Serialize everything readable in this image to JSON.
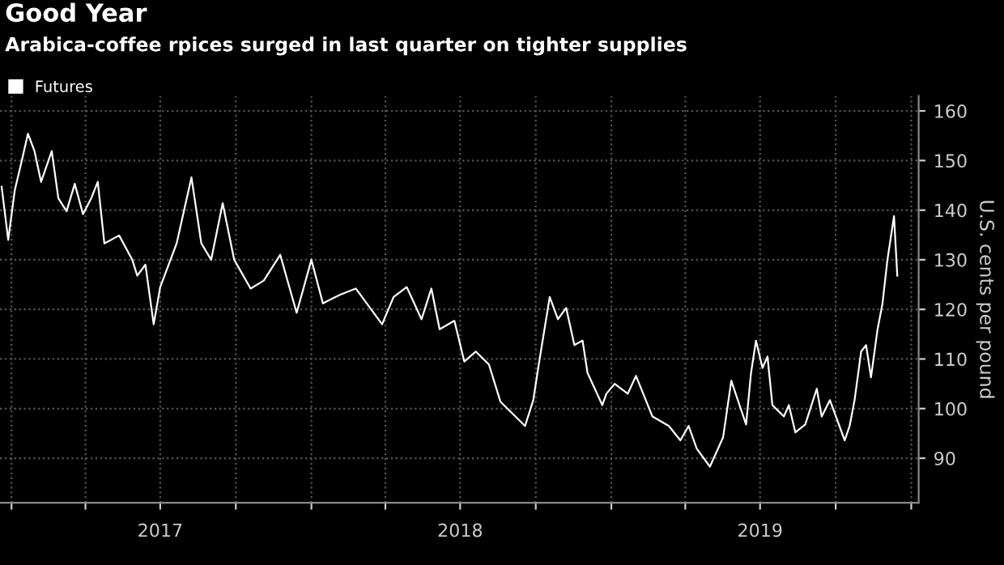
{
  "chart_data": {
    "type": "line",
    "title": "Good Year",
    "subtitle": "Arabica-coffee rpices surged in last quarter on tighter supplies",
    "ylabel": "U.S. cents per pound",
    "x": [
      "2016-12-20",
      "2016-12-28",
      "2017-01-05",
      "2017-01-13",
      "2017-01-21",
      "2017-01-29",
      "2017-02-06",
      "2017-02-19",
      "2017-02-27",
      "2017-03-09",
      "2017-03-19",
      "2017-03-29",
      "2017-04-08",
      "2017-04-16",
      "2017-04-24",
      "2017-05-12",
      "2017-05-28",
      "2017-06-03",
      "2017-06-13",
      "2017-06-23",
      "2017-07-01",
      "2017-07-21",
      "2017-08-08",
      "2017-08-20",
      "2017-09-01",
      "2017-09-15",
      "2017-09-29",
      "2017-10-19",
      "2017-11-04",
      "2017-11-24",
      "2017-12-14",
      "2018-01-01",
      "2018-01-15",
      "2018-02-04",
      "2018-02-24",
      "2018-03-28",
      "2018-04-11",
      "2018-04-27",
      "2018-05-15",
      "2018-05-27",
      "2018-06-06",
      "2018-06-24",
      "2018-07-06",
      "2018-07-20",
      "2018-08-05",
      "2018-08-19",
      "2018-09-18",
      "2018-09-28",
      "2018-10-04",
      "2018-10-18",
      "2018-10-28",
      "2018-11-07",
      "2018-11-17",
      "2018-11-27",
      "2018-12-03",
      "2018-12-21",
      "2018-12-26",
      "2019-01-05",
      "2019-01-21",
      "2019-01-31",
      "2019-02-20",
      "2019-03-12",
      "2019-03-26",
      "2019-04-05",
      "2019-04-15",
      "2019-05-01",
      "2019-05-17",
      "2019-05-27",
      "2019-06-06",
      "2019-06-14",
      "2019-06-20",
      "2019-06-26",
      "2019-07-04",
      "2019-07-10",
      "2019-07-16",
      "2019-07-30",
      "2019-08-05",
      "2019-08-13",
      "2019-08-25",
      "2019-09-08",
      "2019-09-14",
      "2019-09-24",
      "2019-10-12",
      "2019-10-18",
      "2019-10-24",
      "2019-11-01",
      "2019-11-07",
      "2019-11-13",
      "2019-11-21",
      "2019-11-27",
      "2019-12-03",
      "2019-12-11",
      "2019-12-15"
    ],
    "series": [
      {
        "name": "Futures",
        "color": "#ffffff",
        "values": [
          144.7,
          134,
          144,
          149.6,
          155.4,
          151.9,
          145.7,
          151.9,
          142.4,
          139.8,
          145.3,
          139.2,
          142.4,
          145.7,
          133.3,
          134.9,
          130,
          126.8,
          129,
          117,
          124.5,
          133.3,
          146.6,
          133.3,
          130,
          141.4,
          130,
          124.2,
          125.8,
          131,
          119.3,
          130,
          121.2,
          122.9,
          124.2,
          117,
          122.5,
          124.5,
          118,
          124.2,
          116,
          117.7,
          109.5,
          111.5,
          108.9,
          101.4,
          96.5,
          101.7,
          108.2,
          122.5,
          118,
          120.3,
          112.8,
          113.7,
          107.2,
          100.7,
          103,
          105,
          103,
          106.6,
          98.4,
          96.5,
          93.6,
          96.5,
          91.9,
          88.3,
          94.2,
          105.6,
          100.7,
          96.8,
          107.2,
          113.7,
          108.2,
          110.5,
          100.7,
          98.4,
          100.7,
          95.2,
          96.8,
          104,
          98.4,
          101.7,
          93.6,
          96.5,
          101.7,
          111.5,
          112.8,
          106.3,
          116,
          121.2,
          130,
          138.8,
          126.8
        ]
      }
    ],
    "xlim": [
      "2016-12-18",
      "2020-01-10"
    ],
    "xticks": [
      {
        "value": "2017-01-01",
        "label": null
      },
      {
        "value": "2017-04-01",
        "label": null
      },
      {
        "value": "2017-07-01",
        "label": "2017"
      },
      {
        "value": "2017-10-01",
        "label": null
      },
      {
        "value": "2018-01-01",
        "label": null
      },
      {
        "value": "2018-04-01",
        "label": null
      },
      {
        "value": "2018-07-01",
        "label": "2018"
      },
      {
        "value": "2018-10-01",
        "label": null
      },
      {
        "value": "2019-01-01",
        "label": null
      },
      {
        "value": "2019-04-01",
        "label": null
      },
      {
        "value": "2019-07-01",
        "label": "2019"
      },
      {
        "value": "2019-10-01",
        "label": null
      },
      {
        "value": "2020-01-01",
        "label": null
      }
    ],
    "ylim": [
      81,
      163
    ],
    "yticks": [
      90,
      100,
      110,
      120,
      130,
      140,
      150,
      160
    ],
    "grid": true,
    "legend": "top left"
  }
}
